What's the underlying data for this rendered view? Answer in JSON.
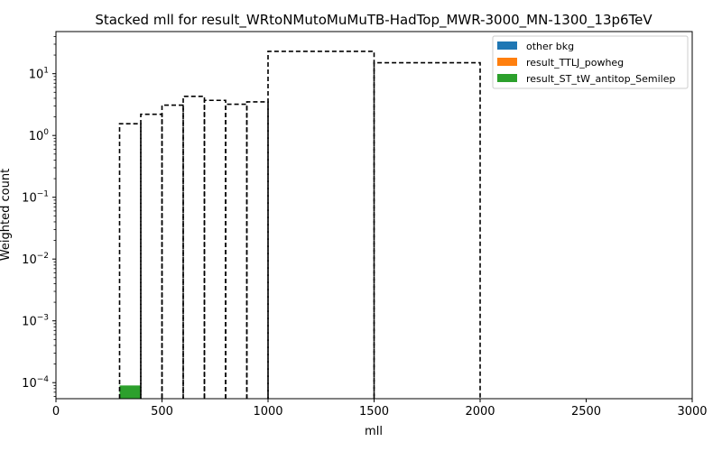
{
  "chart_data": {
    "type": "bar",
    "title": "Stacked mll for result_WRtoNMutoMuMuTB-HadTop_MWR-3000_MN-1300_13p6TeV",
    "xlabel": "mll",
    "ylabel": "Weighted count",
    "xlim": [
      0,
      3000
    ],
    "ylim": [
      5.5e-05,
      48
    ],
    "yscale": "log",
    "grid": false,
    "legend_position": "top-right",
    "x_ticks": [
      {
        "value": 0,
        "label": "0"
      },
      {
        "value": 500,
        "label": "500"
      },
      {
        "value": 1000,
        "label": "1000"
      },
      {
        "value": 1500,
        "label": "1500"
      },
      {
        "value": 2000,
        "label": "2000"
      },
      {
        "value": 2500,
        "label": "2500"
      },
      {
        "value": 3000,
        "label": "3000"
      }
    ],
    "y_ticks": [
      {
        "value": 0.0001,
        "base": "10",
        "exp": "−4"
      },
      {
        "value": 0.001,
        "base": "10",
        "exp": "−3"
      },
      {
        "value": 0.01,
        "base": "10",
        "exp": "−2"
      },
      {
        "value": 0.1,
        "base": "10",
        "exp": "−1"
      },
      {
        "value": 1,
        "base": "10",
        "exp": "0"
      },
      {
        "value": 10,
        "base": "10",
        "exp": "1"
      }
    ],
    "series": [
      {
        "name": "other bkg",
        "color": "#1f77b4",
        "style": "filled",
        "bins": []
      },
      {
        "name": "result_TTLJ_powheg",
        "color": "#ff7f0e",
        "style": "filled",
        "bins": []
      },
      {
        "name": "result_ST_tW_antitop_Semilep",
        "color": "#2ca02c",
        "style": "filled",
        "bins": [
          {
            "low": 300,
            "high": 400,
            "value": 9e-05
          }
        ]
      },
      {
        "name": "",
        "color": "#000000",
        "style": "dashed-step",
        "bins": [
          {
            "low": 300,
            "high": 400,
            "value": 1.55
          },
          {
            "low": 400,
            "high": 500,
            "value": 2.2
          },
          {
            "low": 500,
            "high": 600,
            "value": 3.1
          },
          {
            "low": 600,
            "high": 700,
            "value": 4.3
          },
          {
            "low": 700,
            "high": 800,
            "value": 3.7
          },
          {
            "low": 800,
            "high": 900,
            "value": 3.2
          },
          {
            "low": 900,
            "high": 1000,
            "value": 3.5
          },
          {
            "low": 1000,
            "high": 1500,
            "value": 23
          },
          {
            "low": 1500,
            "high": 2000,
            "value": 15
          }
        ]
      }
    ]
  }
}
